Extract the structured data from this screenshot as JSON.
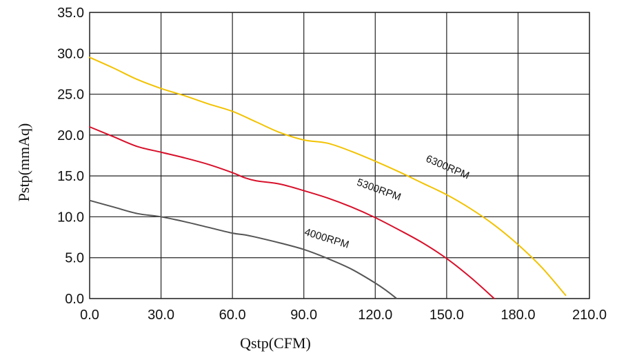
{
  "chart_data": {
    "type": "line",
    "xlabel": "Qstp(CFM)",
    "ylabel": "Pstp(mmAq)",
    "xlim": [
      0,
      210
    ],
    "ylim": [
      0,
      35
    ],
    "x_ticks": [
      "0.0",
      "30.0",
      "60.0",
      "90.0",
      "120.0",
      "150.0",
      "180.0",
      "210.0"
    ],
    "y_ticks": [
      "0.0",
      "5.0",
      "10.0",
      "15.0",
      "20.0",
      "25.0",
      "30.0",
      "35.0"
    ],
    "x_tick_values": [
      0,
      30,
      60,
      90,
      120,
      150,
      180,
      210
    ],
    "y_tick_values": [
      0,
      5,
      10,
      15,
      20,
      25,
      30,
      35
    ],
    "grid": true,
    "series": [
      {
        "name": "6300RPM",
        "color": "#f2c200",
        "x": [
          0,
          10,
          20,
          30,
          40,
          50,
          60,
          70,
          80,
          90,
          100,
          110,
          120,
          130,
          140,
          150,
          160,
          170,
          180,
          190,
          200
        ],
        "y": [
          29.5,
          28.2,
          26.8,
          25.7,
          24.8,
          23.8,
          22.9,
          21.6,
          20.3,
          19.4,
          19.0,
          18.0,
          16.8,
          15.5,
          14.1,
          12.7,
          11.0,
          9.0,
          6.6,
          3.8,
          0.4
        ]
      },
      {
        "name": "5300RPM",
        "color": "#d8102a",
        "x": [
          0,
          10,
          20,
          30,
          40,
          50,
          60,
          65,
          70,
          80,
          90,
          100,
          110,
          120,
          130,
          140,
          150,
          160,
          170
        ],
        "y": [
          21.0,
          19.8,
          18.6,
          17.9,
          17.2,
          16.4,
          15.4,
          14.8,
          14.4,
          14.0,
          13.2,
          12.3,
          11.2,
          9.9,
          8.4,
          6.8,
          4.9,
          2.6,
          0.0
        ]
      },
      {
        "name": "4000RPM",
        "color": "#555555",
        "x": [
          0,
          10,
          20,
          30,
          40,
          50,
          60,
          65,
          70,
          80,
          90,
          100,
          110,
          120,
          125,
          129
        ],
        "y": [
          12.0,
          11.2,
          10.4,
          10.0,
          9.4,
          8.7,
          8.0,
          7.8,
          7.5,
          6.8,
          6.0,
          4.9,
          3.6,
          1.9,
          0.9,
          0.0
        ]
      }
    ],
    "annotations": [
      {
        "text": "6300RPM",
        "series": "6300RPM",
        "x": 141,
        "y": 16.8,
        "angle_deg": 23
      },
      {
        "text": "5300RPM",
        "series": "5300RPM",
        "x": 112,
        "y": 13.9,
        "angle_deg": 20
      },
      {
        "text": "4000RPM",
        "series": "4000RPM",
        "x": 90,
        "y": 7.8,
        "angle_deg": 17
      }
    ]
  }
}
